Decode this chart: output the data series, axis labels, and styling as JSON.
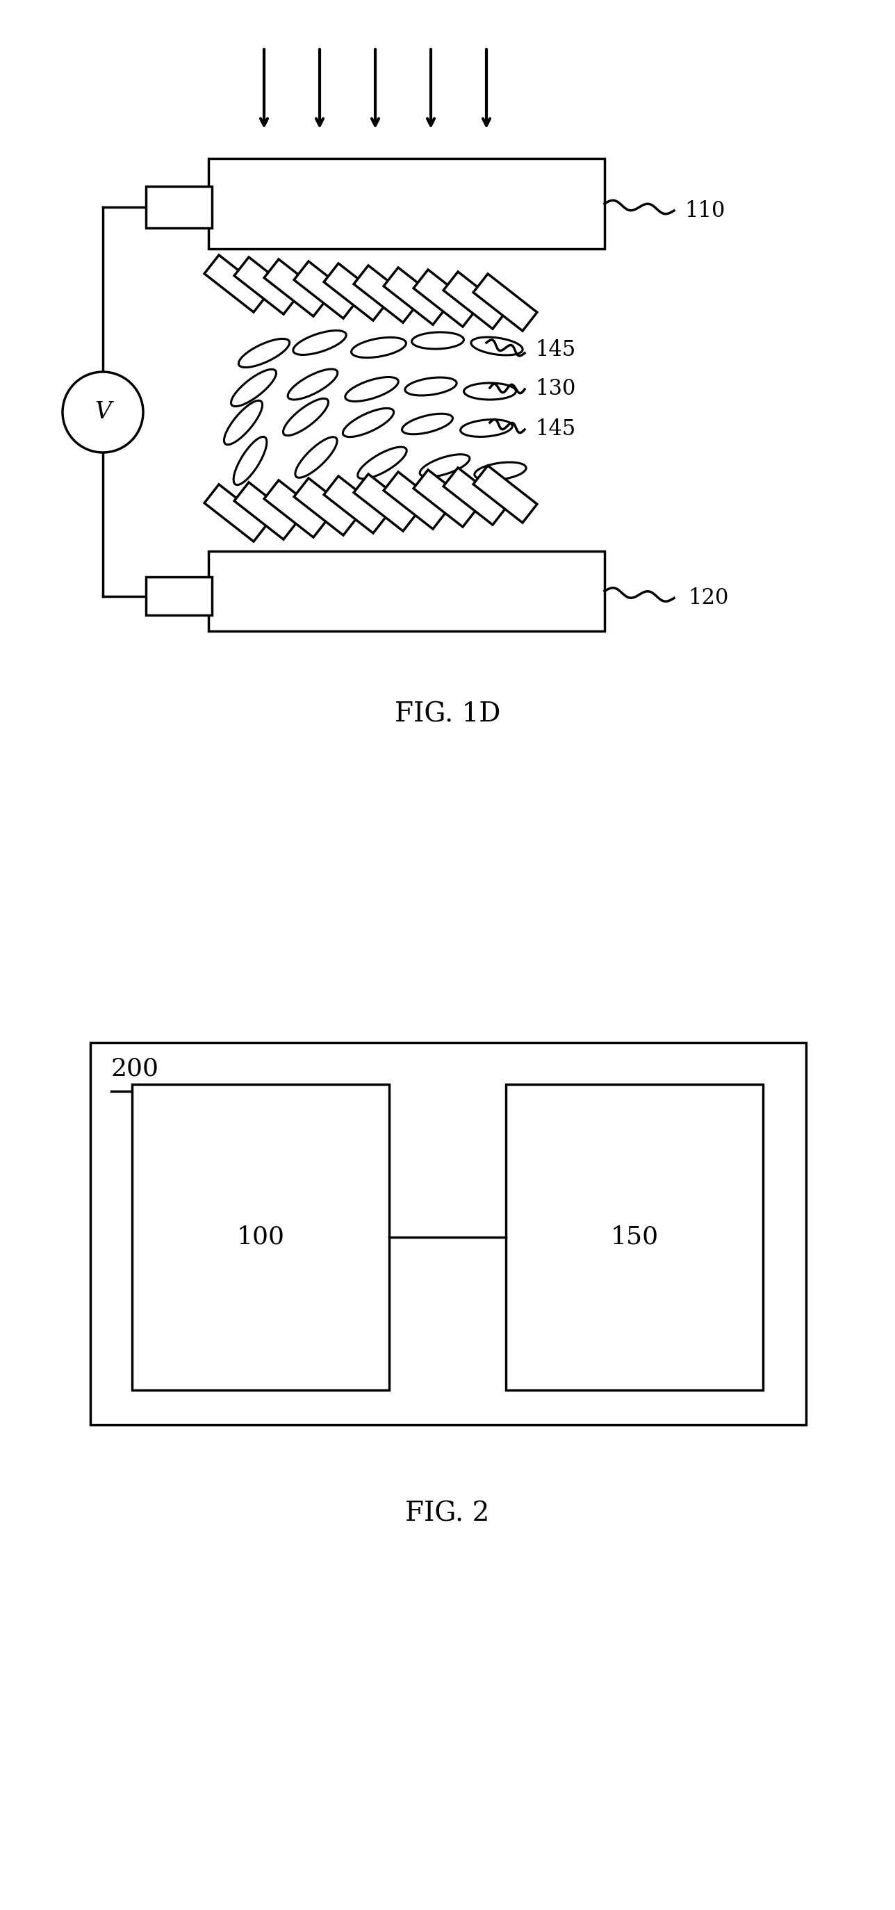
{
  "bg_color": "#ffffff",
  "fig_width": 12.88,
  "fig_height": 27.48,
  "lw": 2.5,
  "black": "#000000",
  "fig1d": {
    "title": "FIG. 1D",
    "label_110": "110",
    "label_120": "120",
    "label_130": "130",
    "label_145a": "145",
    "label_145b": "145",
    "title_fontsize": 28,
    "label_fontsize": 22
  },
  "fig2": {
    "title": "FIG. 2",
    "label_200": "200",
    "label_100": "100",
    "label_150": "150",
    "title_fontsize": 28,
    "label_fontsize": 26
  }
}
